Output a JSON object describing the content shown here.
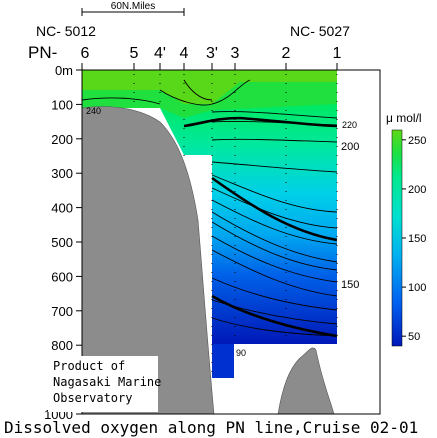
{
  "scale_bar": {
    "label": "60N.Miles"
  },
  "station_ids": {
    "left": "NC- 5012",
    "right": "NC- 5027"
  },
  "line_label": "PN-",
  "stations": [
    "6",
    "5",
    "4'",
    "4",
    "3'",
    "3",
    "2",
    "1"
  ],
  "y_axis": {
    "ticks": [
      "0m",
      "100",
      "200",
      "300",
      "400",
      "500",
      "600",
      "700",
      "800",
      "900",
      "1000"
    ]
  },
  "colorbar": {
    "unit": "μ mol/l",
    "ticks": [
      "250",
      "200",
      "150",
      "100",
      "50"
    ],
    "colors": [
      "#0018b8",
      "#0060f0",
      "#00b0f0",
      "#00e0d0",
      "#00e890",
      "#20e040",
      "#60d818"
    ]
  },
  "contour_labels": [
    "220",
    "200",
    "150",
    "240",
    "90",
    "100"
  ],
  "caption": "Dissolved oxygen along PN line,Cruise 02-01",
  "product_note": [
    "Product of",
    "Nagasaki Marine",
    "Observatory"
  ],
  "chart_data": {
    "type": "heatmap",
    "title": "Dissolved oxygen along PN line,Cruise 02-01",
    "variable": "Dissolved oxygen",
    "unit": "μ mol/l",
    "x_categories": [
      "6",
      "5",
      "4'",
      "4",
      "3'",
      "3",
      "2",
      "1"
    ],
    "ylabel_unit": "m",
    "ylim": [
      1000,
      0
    ],
    "y_ticks": [
      0,
      100,
      200,
      300,
      400,
      500,
      600,
      700,
      800,
      900,
      1000
    ],
    "colorbar_range": [
      40,
      260
    ],
    "colorbar_ticks": [
      50,
      100,
      150,
      200,
      250
    ],
    "contour_labels": [
      240,
      220,
      200,
      150,
      100,
      90
    ],
    "bold_contours": [
      200,
      150,
      100
    ]
  }
}
